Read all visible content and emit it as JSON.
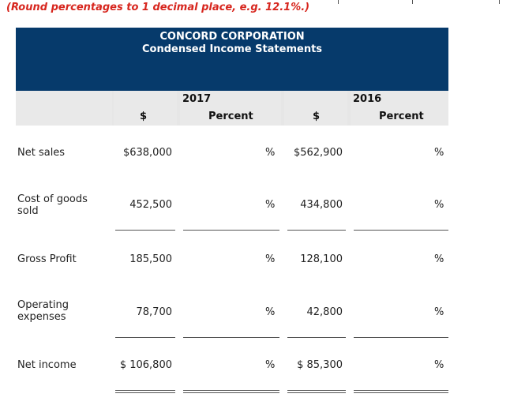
{
  "instruction": "(Round percentages to 1 decimal place, e.g. 12.1%.)",
  "header": {
    "company": "CONCORD CORPORATION",
    "statement": "Condensed Income Statements"
  },
  "columns": {
    "year_2017": "2017",
    "year_2016": "2016",
    "dollar_2017": "$",
    "percent_2017": "Percent",
    "dollar_2016": "$",
    "percent_2016": "Percent"
  },
  "percent_symbol": "%",
  "rows": [
    {
      "label": "Net sales",
      "v2017": "$638,000",
      "v2016": "$562,900"
    },
    {
      "label": "Cost of goods sold",
      "v2017": "452,500",
      "v2016": "434,800"
    },
    {
      "label": "Gross Profit",
      "v2017": "185,500",
      "v2016": "128,100"
    },
    {
      "label": "Operating expenses",
      "v2017": "78,700",
      "v2016": "42,800"
    },
    {
      "label": "Net income",
      "v2017": "$ 106,800",
      "v2016": "$ 85,300"
    }
  ]
}
